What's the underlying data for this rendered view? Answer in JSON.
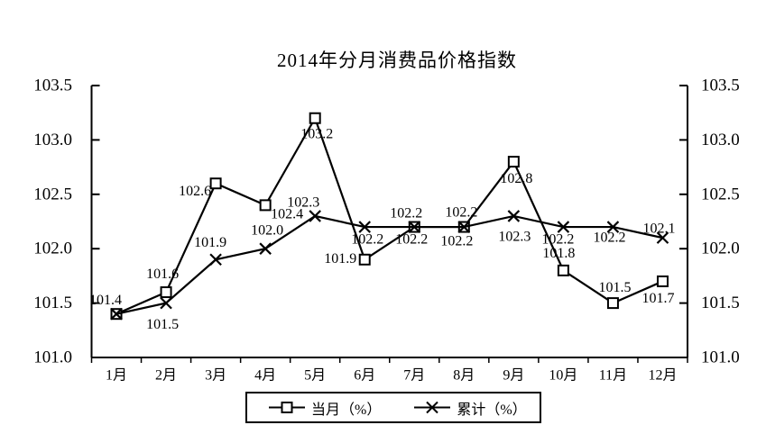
{
  "chart_data": {
    "type": "line",
    "title": "2014年分月消费品价格指数",
    "categories": [
      "1月",
      "2月",
      "3月",
      "4月",
      "5月",
      "6月",
      "7月",
      "8月",
      "9月",
      "10月",
      "11月",
      "12月"
    ],
    "series": [
      {
        "name": "当月（%）",
        "marker": "square",
        "values": [
          101.4,
          101.6,
          102.6,
          102.4,
          103.2,
          101.9,
          102.2,
          102.2,
          102.8,
          101.8,
          101.5,
          101.7
        ],
        "labels": [
          "101.4",
          "101.6",
          "102.6",
          "102.4",
          "103.2",
          "101.9",
          "102.2",
          "102.2",
          "102.8",
          "101.8",
          "101.5",
          "101.7"
        ],
        "label_offsets": [
          [
            -12,
            -15
          ],
          [
            -4,
            -20
          ],
          [
            -23,
            9
          ],
          [
            24,
            10
          ],
          [
            2,
            18
          ],
          [
            -27,
            -1
          ],
          [
            -9,
            -15
          ],
          [
            -3,
            -16
          ],
          [
            3,
            19
          ],
          [
            -5,
            -19
          ],
          [
            2,
            -17
          ],
          [
            -5,
            19
          ]
        ]
      },
      {
        "name": "累计（%）",
        "marker": "x",
        "values": [
          101.4,
          101.5,
          101.9,
          102.0,
          102.3,
          102.2,
          102.2,
          102.2,
          102.3,
          102.2,
          102.2,
          102.1
        ],
        "labels": [
          null,
          "101.5",
          "101.9",
          "102.0",
          "102.3",
          "102.2",
          "102.2",
          "102.2",
          "102.3",
          "102.2",
          "102.2",
          "102.1"
        ],
        "label_offsets": [
          [
            0,
            0
          ],
          [
            -4,
            24
          ],
          [
            -6,
            -19
          ],
          [
            2,
            -20
          ],
          [
            -13,
            -15
          ],
          [
            3,
            14
          ],
          [
            -3,
            14
          ],
          [
            -8,
            16
          ],
          [
            1,
            23
          ],
          [
            -6,
            14
          ],
          [
            -4,
            12
          ],
          [
            -4,
            -10
          ]
        ]
      }
    ],
    "y_axis": {
      "min": 101.0,
      "max": 103.5,
      "step": 0.5,
      "ticks": [
        "101.0",
        "101.5",
        "102.0",
        "102.5",
        "103.0",
        "103.5"
      ],
      "dual_axis": true
    },
    "legend": {
      "position": "bottom",
      "items": [
        "当月（%）",
        "累计（%）"
      ]
    },
    "grid": false,
    "colors": {
      "line": "#000000",
      "background": "#ffffff",
      "text": "#000000"
    }
  }
}
